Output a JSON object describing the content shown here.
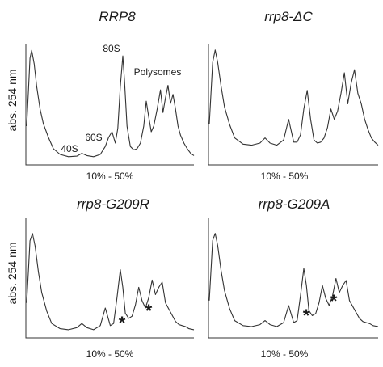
{
  "chart_data": [
    {
      "type": "line",
      "title": "RRP8",
      "ylabel": "abs. 254 nm",
      "xlabel": "10% - 50%",
      "grid": false,
      "annotations": [
        {
          "text": "40S",
          "x": 0.33
        },
        {
          "text": "60S",
          "x": 0.51
        },
        {
          "text": "80S",
          "x": 0.57
        },
        {
          "text": "Polysomes",
          "x": 0.83
        }
      ],
      "x": [
        0,
        0.01,
        0.02,
        0.03,
        0.045,
        0.06,
        0.08,
        0.1,
        0.13,
        0.16,
        0.2,
        0.25,
        0.3,
        0.33,
        0.36,
        0.4,
        0.44,
        0.47,
        0.49,
        0.51,
        0.53,
        0.545,
        0.56,
        0.575,
        0.585,
        0.6,
        0.62,
        0.64,
        0.66,
        0.68,
        0.7,
        0.715,
        0.73,
        0.745,
        0.76,
        0.78,
        0.8,
        0.815,
        0.83,
        0.845,
        0.86,
        0.875,
        0.89,
        0.905,
        0.92,
        0.94,
        0.96,
        0.98,
        1.0
      ],
      "y": [
        0.3,
        0.6,
        0.9,
        0.97,
        0.85,
        0.65,
        0.45,
        0.32,
        0.2,
        0.1,
        0.05,
        0.03,
        0.035,
        0.06,
        0.04,
        0.03,
        0.05,
        0.12,
        0.2,
        0.25,
        0.15,
        0.28,
        0.65,
        0.92,
        0.7,
        0.3,
        0.12,
        0.09,
        0.1,
        0.15,
        0.3,
        0.52,
        0.38,
        0.25,
        0.3,
        0.45,
        0.62,
        0.42,
        0.55,
        0.66,
        0.5,
        0.58,
        0.45,
        0.3,
        0.22,
        0.15,
        0.1,
        0.06,
        0.04
      ],
      "xlim": [
        0,
        1
      ],
      "ylim": [
        0,
        1
      ]
    },
    {
      "type": "line",
      "title": "rrp8-ΔC",
      "xlabel": "10% - 50%",
      "grid": false,
      "x": [
        0,
        0.01,
        0.02,
        0.035,
        0.05,
        0.07,
        0.09,
        0.12,
        0.15,
        0.2,
        0.25,
        0.3,
        0.33,
        0.36,
        0.4,
        0.44,
        0.47,
        0.5,
        0.52,
        0.54,
        0.56,
        0.58,
        0.6,
        0.62,
        0.64,
        0.66,
        0.68,
        0.7,
        0.72,
        0.74,
        0.76,
        0.78,
        0.8,
        0.82,
        0.84,
        0.86,
        0.88,
        0.9,
        0.92,
        0.94,
        0.96,
        0.98,
        1.0
      ],
      "y": [
        0.25,
        0.55,
        0.85,
        0.97,
        0.85,
        0.62,
        0.42,
        0.25,
        0.12,
        0.06,
        0.05,
        0.07,
        0.12,
        0.07,
        0.05,
        0.1,
        0.3,
        0.08,
        0.08,
        0.15,
        0.4,
        0.58,
        0.3,
        0.1,
        0.07,
        0.08,
        0.12,
        0.22,
        0.4,
        0.3,
        0.38,
        0.55,
        0.75,
        0.45,
        0.65,
        0.78,
        0.55,
        0.45,
        0.3,
        0.2,
        0.12,
        0.08,
        0.05
      ],
      "xlim": [
        0,
        1
      ],
      "ylim": [
        0,
        1
      ]
    },
    {
      "type": "line",
      "title": "rrp8-G209R",
      "ylabel": "abs. 254 nm",
      "xlabel": "10% - 50%",
      "grid": false,
      "annotations": [
        {
          "text": "*",
          "x": 0.6
        },
        {
          "text": "*",
          "x": 0.76
        }
      ],
      "x": [
        0,
        0.01,
        0.02,
        0.035,
        0.05,
        0.07,
        0.09,
        0.12,
        0.15,
        0.2,
        0.25,
        0.3,
        0.33,
        0.36,
        0.4,
        0.44,
        0.47,
        0.5,
        0.52,
        0.54,
        0.56,
        0.575,
        0.59,
        0.61,
        0.63,
        0.65,
        0.67,
        0.69,
        0.71,
        0.73,
        0.75,
        0.77,
        0.79,
        0.81,
        0.83,
        0.85,
        0.87,
        0.89,
        0.91,
        0.93,
        0.95,
        0.97,
        1.0
      ],
      "y": [
        0.3,
        0.6,
        0.9,
        0.97,
        0.85,
        0.6,
        0.4,
        0.22,
        0.1,
        0.05,
        0.04,
        0.06,
        0.1,
        0.06,
        0.04,
        0.08,
        0.25,
        0.08,
        0.1,
        0.35,
        0.62,
        0.45,
        0.2,
        0.15,
        0.17,
        0.28,
        0.45,
        0.32,
        0.25,
        0.35,
        0.52,
        0.38,
        0.45,
        0.5,
        0.3,
        0.24,
        0.18,
        0.12,
        0.09,
        0.08,
        0.07,
        0.05,
        0.04
      ],
      "xlim": [
        0,
        1
      ],
      "ylim": [
        0,
        1
      ]
    },
    {
      "type": "line",
      "title": "rrp8-G209A",
      "xlabel": "10% - 50%",
      "grid": false,
      "annotations": [
        {
          "text": "*",
          "x": 0.6
        },
        {
          "text": "*",
          "x": 0.76
        }
      ],
      "x": [
        0,
        0.01,
        0.02,
        0.035,
        0.05,
        0.07,
        0.09,
        0.12,
        0.15,
        0.2,
        0.25,
        0.3,
        0.33,
        0.36,
        0.4,
        0.44,
        0.47,
        0.5,
        0.52,
        0.54,
        0.56,
        0.575,
        0.59,
        0.61,
        0.63,
        0.65,
        0.67,
        0.69,
        0.71,
        0.73,
        0.75,
        0.77,
        0.79,
        0.81,
        0.83,
        0.85,
        0.87,
        0.89,
        0.91,
        0.93,
        0.95,
        0.97,
        1.0
      ],
      "y": [
        0.3,
        0.6,
        0.9,
        0.97,
        0.85,
        0.6,
        0.4,
        0.22,
        0.1,
        0.05,
        0.04,
        0.06,
        0.1,
        0.06,
        0.04,
        0.08,
        0.25,
        0.08,
        0.1,
        0.35,
        0.62,
        0.45,
        0.2,
        0.15,
        0.17,
        0.28,
        0.45,
        0.32,
        0.25,
        0.35,
        0.52,
        0.38,
        0.45,
        0.5,
        0.3,
        0.24,
        0.18,
        0.12,
        0.09,
        0.08,
        0.07,
        0.05,
        0.04
      ],
      "xlim": [
        0,
        1
      ],
      "ylim": [
        0,
        1
      ]
    }
  ]
}
